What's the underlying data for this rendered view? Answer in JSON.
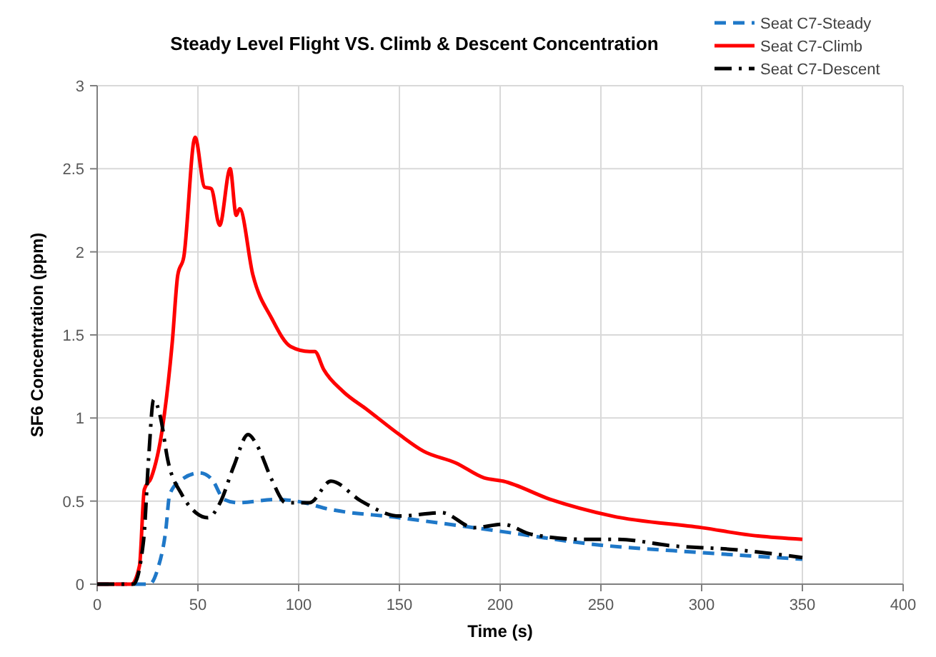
{
  "chart_data": {
    "type": "line",
    "title": "Steady Level Flight VS. Climb & Descent Concentration",
    "xlabel": "Time (s)",
    "ylabel": "SF6 Concentration (ppm)",
    "xlim": [
      0,
      400
    ],
    "ylim": [
      0,
      3
    ],
    "xticks": [
      0,
      50,
      100,
      150,
      200,
      250,
      300,
      350,
      400
    ],
    "yticks": [
      0,
      0.5,
      1,
      1.5,
      2,
      2.5,
      3
    ],
    "grid": true,
    "legend": "top right",
    "marker": "none",
    "series": [
      {
        "name": "Seat C7-Steady",
        "color": "#1f78c8",
        "line_style": "dashed",
        "x": [
          0,
          21,
          26,
          30,
          34,
          36,
          42,
          51,
          57,
          63,
          70,
          89,
          103,
          112,
          150,
          199,
          246,
          300,
          350
        ],
        "values": [
          0,
          0,
          0,
          0.09,
          0.32,
          0.54,
          0.63,
          0.67,
          0.63,
          0.51,
          0.49,
          0.51,
          0.49,
          0.46,
          0.4,
          0.32,
          0.24,
          0.19,
          0.15
        ]
      },
      {
        "name": "Seat C7-Climb",
        "color": "#ff0000",
        "line_style": "solid",
        "x": [
          0,
          17,
          21,
          23.4,
          26.8,
          32.4,
          37.3,
          40,
          43,
          48.6,
          53.3,
          56.6,
          60.8,
          66,
          69,
          70.7,
          77.3,
          86.6,
          96,
          105.4,
          108,
          112.5,
          122,
          134,
          150,
          162,
          178,
          192,
          201.5,
          225,
          255.6,
          300,
          328,
          350
        ],
        "values": [
          0,
          0,
          0.11,
          0.57,
          0.64,
          0.94,
          1.46,
          1.86,
          1.97,
          2.69,
          2.39,
          2.38,
          2.16,
          2.5,
          2.22,
          2.26,
          1.86,
          1.6,
          1.43,
          1.4,
          1.4,
          1.29,
          1.16,
          1.05,
          0.9,
          0.8,
          0.73,
          0.64,
          0.62,
          0.51,
          0.41,
          0.34,
          0.29,
          0.27
        ]
      },
      {
        "name": "Seat C7-Descent",
        "color": "#000000",
        "line_style": "dashdot",
        "x": [
          0,
          18,
          23,
          25.6,
          28,
          31.5,
          35,
          42,
          49,
          55,
          61,
          67.8,
          74.9,
          79.6,
          86.6,
          93.7,
          105.4,
          116,
          131,
          150,
          171,
          187,
          201.5,
          215.5,
          242,
          258,
          286,
          314,
          350
        ],
        "values": [
          0,
          0,
          0.26,
          0.77,
          1.11,
          1,
          0.75,
          0.54,
          0.43,
          0.4,
          0.49,
          0.71,
          0.9,
          0.83,
          0.63,
          0.49,
          0.49,
          0.62,
          0.5,
          0.41,
          0.43,
          0.34,
          0.36,
          0.3,
          0.27,
          0.27,
          0.23,
          0.21,
          0.16
        ]
      }
    ]
  }
}
